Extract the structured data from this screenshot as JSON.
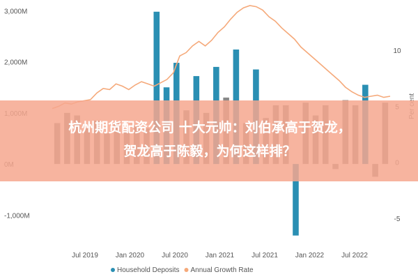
{
  "chart_data": {
    "type": "bar",
    "x_ticks": [
      "Jul 2019",
      "Jan 2020",
      "Jul 2020",
      "Jan 2021",
      "Jul 2021",
      "Jan 2022",
      "Jul 2022"
    ],
    "series": [
      {
        "name": "Household Deposits",
        "kind": "bar",
        "color": "#2a8fb3",
        "values": [
          800,
          1000,
          950,
          700,
          850,
          600,
          800,
          650,
          750,
          700,
          2980,
          1500,
          1980,
          1050,
          1720,
          1000,
          1900,
          1300,
          2240,
          800,
          1850,
          900,
          1150,
          1150,
          -1400,
          1200,
          950,
          1150,
          -100,
          1250,
          1150,
          1550,
          -250,
          1200
        ]
      },
      {
        "name": "Annual Growth Rate",
        "kind": "line",
        "color": "#f5a97a",
        "values": [
          4.8,
          5.0,
          5.3,
          5.2,
          5.4,
          5.5,
          5.6,
          6.2,
          6.6,
          6.5,
          7.0,
          6.8,
          6.5,
          6.9,
          7.2,
          7.0,
          6.8,
          7.1,
          7.4,
          8.0,
          9.5,
          9.8,
          10.4,
          10.8,
          10.4,
          10.9,
          11.6,
          12.1,
          12.8,
          13.4,
          13.8,
          14.0,
          13.9,
          13.6,
          13.0,
          12.6,
          12.0,
          11.5,
          11.0,
          10.3,
          9.8,
          9.3,
          8.8,
          8.3,
          7.8,
          7.3,
          6.7,
          6.3,
          6.0,
          5.8,
          5.9,
          6.0,
          5.8,
          5.9
        ]
      }
    ],
    "y_left": {
      "ticks": [
        "3,000M",
        "2,000M",
        "1,000M",
        "0M",
        "-1,000M"
      ],
      "range": [
        -1500,
        3100
      ]
    },
    "y_right": {
      "ticks": [
        "10",
        "5",
        "0",
        "-5"
      ],
      "range": [
        -7,
        14
      ],
      "label": "Per cent"
    },
    "grid": false,
    "legend": {
      "position": "bottom",
      "items": [
        {
          "label": "Household Deposits",
          "color": "#2a8fb3"
        },
        {
          "label": "Annual Growth Rate",
          "color": "#f5a97a"
        }
      ]
    }
  },
  "overlay": {
    "title_line1": "杭州期货配资公司 十大元帅：刘伯承高于贺龙，",
    "title_line2": "贺龙高于陈毅，为何这样排？",
    "band_color": "#f6a78e"
  }
}
